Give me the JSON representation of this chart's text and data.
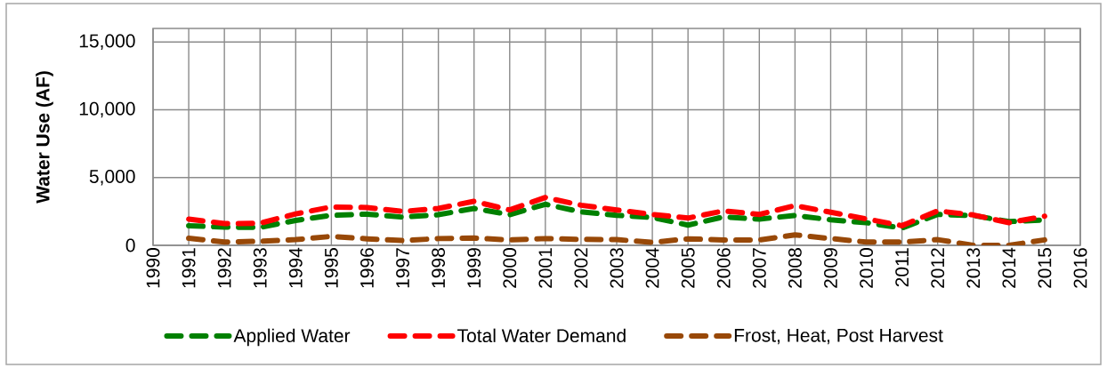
{
  "chart_data": {
    "type": "line",
    "ylabel": "Water Use (AF)",
    "x": [
      1991,
      1992,
      1993,
      1994,
      1995,
      1996,
      1997,
      1998,
      1999,
      2000,
      2001,
      2002,
      2003,
      2004,
      2005,
      2006,
      2007,
      2008,
      2009,
      2010,
      2011,
      2012,
      2013,
      2014,
      2015
    ],
    "xlim": [
      1990,
      2016
    ],
    "xticks": [
      1990,
      1991,
      1992,
      1993,
      1994,
      1995,
      1996,
      1997,
      1998,
      1999,
      2000,
      2001,
      2002,
      2003,
      2004,
      2005,
      2006,
      2007,
      2008,
      2009,
      2010,
      2011,
      2012,
      2013,
      2014,
      2015,
      2016
    ],
    "ylim": [
      0,
      16000
    ],
    "yticks": [
      0,
      {
        "value": 5000,
        "label": "5,000"
      },
      {
        "value": 10000,
        "label": "10,000"
      },
      {
        "value": 15000,
        "label": "15,000"
      }
    ],
    "series": [
      {
        "name": "Applied Water",
        "color": "#008000",
        "values": [
          1450,
          1340,
          1320,
          1840,
          2210,
          2300,
          2080,
          2260,
          2720,
          2260,
          3030,
          2470,
          2210,
          2060,
          1490,
          2100,
          1930,
          2210,
          1880,
          1670,
          1270,
          2280,
          2200,
          1750,
          1880
        ]
      },
      {
        "name": "Total Water Demand",
        "color": "#ff0000",
        "values": [
          1930,
          1600,
          1630,
          2320,
          2830,
          2790,
          2500,
          2720,
          3250,
          2610,
          3530,
          2960,
          2610,
          2280,
          2010,
          2540,
          2280,
          2930,
          2440,
          1950,
          1450,
          2540,
          2240,
          1670,
          2150
        ]
      },
      {
        "name": "Frost, Heat, Post Harvest",
        "color": "#984807",
        "values": [
          530,
          240,
          300,
          420,
          660,
          480,
          350,
          500,
          540,
          400,
          500,
          440,
          420,
          220,
          480,
          400,
          400,
          770,
          500,
          240,
          240,
          420,
          0,
          0,
          400
        ]
      }
    ],
    "grid": true,
    "legend": "bottom",
    "line_style": "dashed",
    "marker": "none"
  }
}
